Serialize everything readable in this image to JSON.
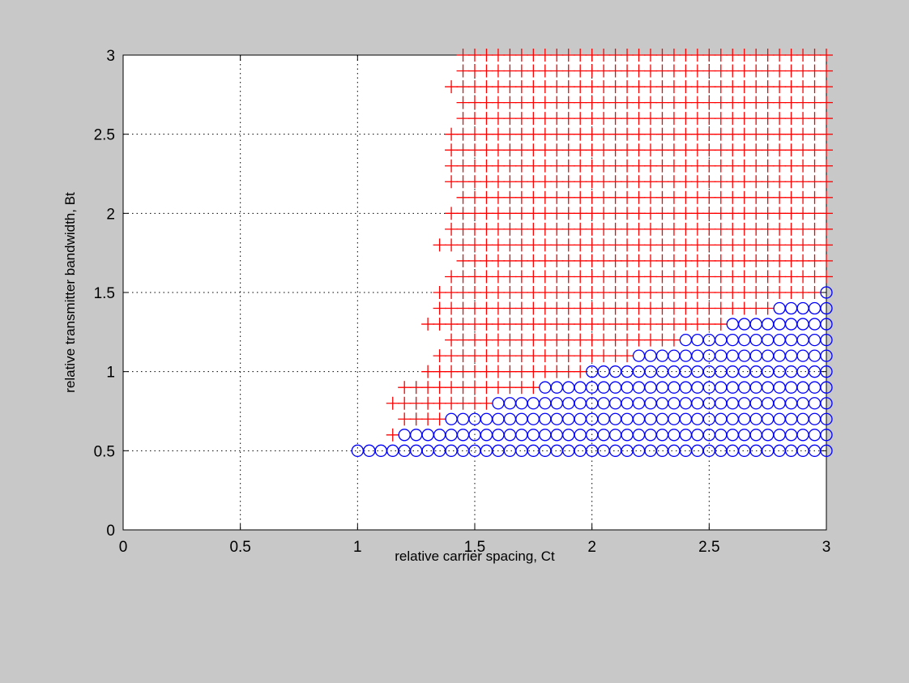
{
  "chart_data": {
    "type": "scatter",
    "title": "",
    "xlabel": "relative carrier spacing, Ct",
    "ylabel": "relative transmitter bandwidth, Bt",
    "xlim": [
      0,
      3
    ],
    "ylim": [
      0,
      3
    ],
    "grid": true,
    "xticks": [
      "0",
      "0.5",
      "1",
      "1.5",
      "2",
      "2.5",
      "3"
    ],
    "yticks": [
      "0",
      "0.5",
      "1",
      "1.5",
      "2",
      "2.5",
      "3"
    ],
    "x_step": 0.05,
    "rows": [
      {
        "y": 3.0,
        "plus_start": 1.45,
        "circle_start": null
      },
      {
        "y": 2.9,
        "plus_start": 1.45,
        "circle_start": null
      },
      {
        "y": 2.8,
        "plus_start": 1.4,
        "circle_start": null
      },
      {
        "y": 2.7,
        "plus_start": 1.45,
        "circle_start": null
      },
      {
        "y": 2.6,
        "plus_start": 1.45,
        "circle_start": null
      },
      {
        "y": 2.5,
        "plus_start": 1.4,
        "circle_start": null
      },
      {
        "y": 2.4,
        "plus_start": 1.4,
        "circle_start": null
      },
      {
        "y": 2.3,
        "plus_start": 1.4,
        "circle_start": null
      },
      {
        "y": 2.2,
        "plus_start": 1.4,
        "circle_start": null
      },
      {
        "y": 2.1,
        "plus_start": 1.45,
        "circle_start": null
      },
      {
        "y": 2.0,
        "plus_start": 1.4,
        "circle_start": null
      },
      {
        "y": 1.9,
        "plus_start": 1.4,
        "circle_start": null
      },
      {
        "y": 1.8,
        "plus_start": 1.35,
        "circle_start": null
      },
      {
        "y": 1.7,
        "plus_start": 1.45,
        "circle_start": null
      },
      {
        "y": 1.6,
        "plus_start": 1.4,
        "circle_start": null
      },
      {
        "y": 1.5,
        "plus_start": 1.35,
        "circle_start": 3.0
      },
      {
        "y": 1.4,
        "plus_start": 1.35,
        "circle_start": 2.8
      },
      {
        "y": 1.3,
        "plus_start": 1.3,
        "circle_start": 2.6
      },
      {
        "y": 1.2,
        "plus_start": 1.4,
        "circle_start": 2.4
      },
      {
        "y": 1.1,
        "plus_start": 1.35,
        "circle_start": 2.2
      },
      {
        "y": 1.0,
        "plus_start": 1.3,
        "circle_start": 2.0
      },
      {
        "y": 0.9,
        "plus_start": 1.2,
        "circle_start": 1.8
      },
      {
        "y": 0.8,
        "plus_start": 1.15,
        "circle_start": 1.6
      },
      {
        "y": 0.7,
        "plus_start": 1.2,
        "circle_start": 1.4
      },
      {
        "y": 0.6,
        "plus_start": 1.15,
        "circle_start": 1.2
      },
      {
        "y": 0.5,
        "plus_start": null,
        "circle_start": 1.0
      }
    ],
    "series": [
      {
        "marker": "+",
        "color": "#ff0000"
      },
      {
        "marker": "o",
        "color": "#0000ff"
      }
    ]
  }
}
